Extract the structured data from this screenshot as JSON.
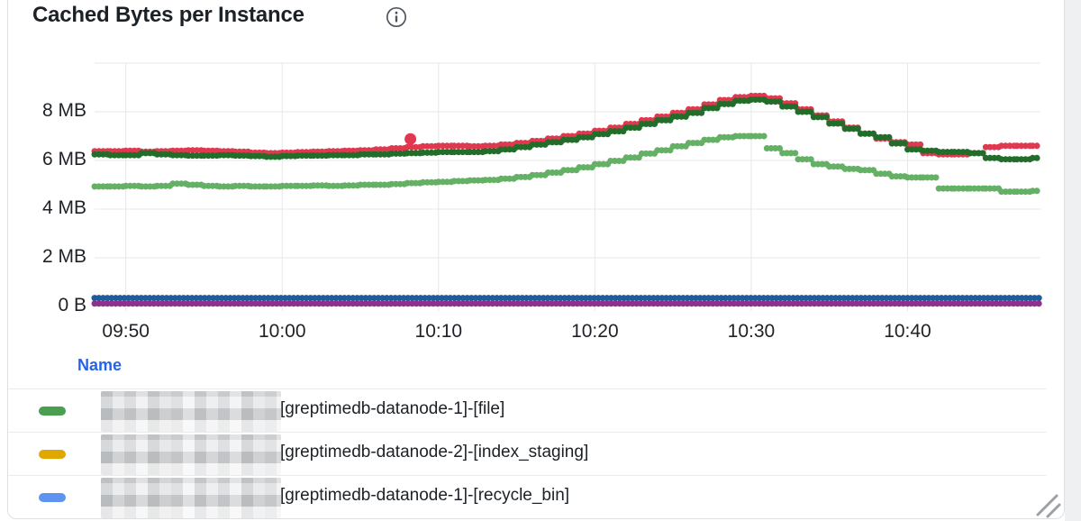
{
  "panel": {
    "title": "Cached Bytes per Instance",
    "info_icon": "info"
  },
  "colors": {
    "grid": "#e5e7e9",
    "axis_text": "#1e2227",
    "title_text": "#1c2127",
    "legend_header_blue": "#2563eb",
    "panel_border": "#dcdfe3"
  },
  "legend": {
    "header": "Name",
    "rows": [
      {
        "color": "#4a9e50",
        "label": "[greptimedb-datanode-1]-[file]"
      },
      {
        "color": "#dfa800",
        "label": "[greptimedb-datanode-2]-[index_staging]"
      },
      {
        "color": "#5e93f2",
        "label": "[greptimedb-datanode-1]-[recycle_bin]"
      }
    ],
    "redacted_note": "left part of each row name is pixelated/blurred"
  },
  "chart_data": {
    "type": "scatter",
    "title": "Cached Bytes per Instance",
    "xlabel": "",
    "ylabel": "",
    "x_tick_labels": [
      "09:50",
      "10:00",
      "10:10",
      "10:20",
      "10:30",
      "10:40"
    ],
    "x_tick_minutes": [
      2,
      12,
      22,
      32,
      42,
      52
    ],
    "y_tick_labels": [
      "0 B",
      "2 MB",
      "4 MB",
      "6 MB",
      "8 MB"
    ],
    "y_tick_values": [
      0,
      2,
      4,
      6,
      8
    ],
    "grid_y_values": [
      2,
      4,
      6,
      8,
      10
    ],
    "x_range_minutes": [
      0,
      60.5
    ],
    "y_range_mb": [
      0,
      10
    ],
    "grid": true,
    "legend_position": "bottom-table",
    "unit": "MB",
    "series": [
      {
        "name": "red",
        "color": "#e0394f",
        "t_start": 0,
        "t_step": 1,
        "values": [
          6.38,
          6.38,
          6.4,
          6.36,
          6.38,
          6.4,
          6.42,
          6.4,
          6.38,
          6.36,
          6.32,
          6.3,
          6.32,
          6.34,
          6.36,
          6.38,
          6.4,
          6.42,
          6.45,
          6.5,
          6.55,
          6.58,
          6.6,
          6.6,
          6.58,
          6.6,
          6.65,
          6.72,
          6.8,
          6.9,
          7.0,
          7.1,
          7.22,
          7.35,
          7.5,
          7.65,
          7.8,
          7.95,
          8.1,
          8.3,
          8.48,
          8.6,
          8.65,
          8.55,
          8.35,
          8.1,
          7.85,
          7.6,
          7.35,
          7.1,
          6.9,
          6.75,
          6.65,
          6.3,
          6.25,
          6.25,
          6.3,
          6.55,
          6.6,
          6.6,
          6.6
        ]
      },
      {
        "name": "dark-green",
        "color": "#226d2a",
        "t_start": 0,
        "t_step": 1,
        "values": [
          6.25,
          6.22,
          6.22,
          6.3,
          6.25,
          6.22,
          6.2,
          6.2,
          6.22,
          6.2,
          6.18,
          6.15,
          6.18,
          6.2,
          6.2,
          6.22,
          6.22,
          6.25,
          6.25,
          6.28,
          6.3,
          6.32,
          6.35,
          6.35,
          6.35,
          6.38,
          6.45,
          6.55,
          6.65,
          6.75,
          6.85,
          6.95,
          7.08,
          7.2,
          7.35,
          7.5,
          7.65,
          7.8,
          7.95,
          8.15,
          8.32,
          8.45,
          8.5,
          8.42,
          8.22,
          8.0,
          7.78,
          7.52,
          7.3,
          7.1,
          6.95,
          6.7,
          6.45,
          6.4,
          6.35,
          6.35,
          6.3,
          6.1,
          6.05,
          6.05,
          6.1
        ]
      },
      {
        "name": "light-green",
        "color": "#64b064",
        "t_start": 0,
        "t_step": 1,
        "values": [
          4.93,
          4.93,
          4.95,
          4.93,
          4.95,
          5.05,
          5.0,
          4.95,
          4.93,
          4.95,
          4.93,
          4.93,
          4.95,
          4.95,
          4.97,
          4.95,
          4.97,
          5.0,
          5.0,
          5.03,
          5.07,
          5.1,
          5.12,
          5.15,
          5.18,
          5.2,
          5.25,
          5.32,
          5.4,
          5.5,
          5.6,
          5.72,
          5.85,
          5.98,
          6.12,
          6.28,
          6.42,
          6.58,
          6.72,
          6.85,
          6.95,
          7.0,
          7.0,
          6.5,
          6.3,
          6.05,
          5.85,
          5.75,
          5.65,
          5.6,
          5.45,
          5.35,
          5.3,
          5.3,
          4.85,
          4.85,
          4.85,
          4.85,
          4.72,
          4.72,
          4.75
        ]
      },
      {
        "name": "blue",
        "color": "#1f5c99",
        "t_start": 0,
        "t_step": 60.5,
        "values": [
          0.35,
          0.35
        ]
      },
      {
        "name": "purple",
        "color": "#8c318c",
        "t_start": 0,
        "t_step": 60.5,
        "values": [
          0.12,
          0.12
        ]
      }
    ],
    "outliers": [
      {
        "series": "red",
        "color": "#e0394f",
        "t": 20.2,
        "v": 6.88
      }
    ]
  }
}
